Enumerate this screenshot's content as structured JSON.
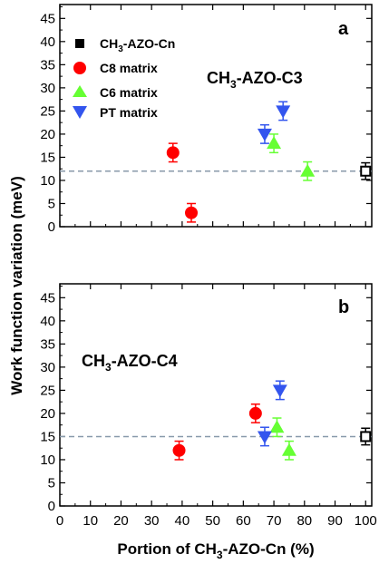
{
  "chart_data": [
    {
      "type": "scatter",
      "panel_letter": "a",
      "annotation_main": "CH",
      "annotation_sub": "3",
      "annotation_rest": "-AZO-C3",
      "xlim": [
        0,
        102
      ],
      "ylim": [
        0,
        48
      ],
      "yticks": [
        0,
        5,
        10,
        15,
        20,
        25,
        30,
        35,
        40,
        45
      ],
      "grid": false,
      "legend_position": "top-left",
      "reference_line_y": 12,
      "series": [
        {
          "name_main": "CH",
          "name_sub": "3",
          "name_rest": "-AZO-Cn",
          "color": "#000000",
          "marker": "square-open",
          "points": [
            {
              "x": 100,
              "y": 12,
              "err": 1.8
            }
          ]
        },
        {
          "name_main": "C8 matrix",
          "color": "#ff0000",
          "marker": "circle",
          "points": [
            {
              "x": 37,
              "y": 16,
              "err": 2
            },
            {
              "x": 43,
              "y": 3,
              "err": 2
            }
          ]
        },
        {
          "name_main": "C6 matrix",
          "color": "#66ff33",
          "marker": "triangle-up",
          "points": [
            {
              "x": 70,
              "y": 18,
              "err": 2
            },
            {
              "x": 81,
              "y": 12,
              "err": 2
            }
          ]
        },
        {
          "name_main": "PT matrix",
          "color": "#3355ee",
          "marker": "triangle-down",
          "points": [
            {
              "x": 67,
              "y": 20,
              "err": 2
            },
            {
              "x": 73,
              "y": 25,
              "err": 2
            }
          ]
        }
      ]
    },
    {
      "type": "scatter",
      "panel_letter": "b",
      "annotation_main": "CH",
      "annotation_sub": "3",
      "annotation_rest": "-AZO-C4",
      "xlim": [
        0,
        102
      ],
      "ylim": [
        0,
        48
      ],
      "yticks": [
        0,
        5,
        10,
        15,
        20,
        25,
        30,
        35,
        40,
        45
      ],
      "xticks": [
        0,
        10,
        20,
        30,
        40,
        50,
        60,
        70,
        80,
        90,
        100
      ],
      "grid": false,
      "reference_line_y": 15,
      "series": [
        {
          "color": "#000000",
          "marker": "square-open",
          "points": [
            {
              "x": 100,
              "y": 15,
              "err": 1.8
            }
          ]
        },
        {
          "color": "#ff0000",
          "marker": "circle",
          "points": [
            {
              "x": 39,
              "y": 12,
              "err": 2
            },
            {
              "x": 64,
              "y": 20,
              "err": 2
            }
          ]
        },
        {
          "color": "#66ff33",
          "marker": "triangle-up",
          "points": [
            {
              "x": 71,
              "y": 17,
              "err": 2
            },
            {
              "x": 75,
              "y": 12,
              "err": 2
            }
          ]
        },
        {
          "color": "#3355ee",
          "marker": "triangle-down",
          "points": [
            {
              "x": 67,
              "y": 15,
              "err": 2
            },
            {
              "x": 72,
              "y": 25,
              "err": 2
            }
          ]
        }
      ]
    }
  ],
  "ylabel": "Work function variation (meV)",
  "xlabel_main": "Portion of CH",
  "xlabel_sub": "3",
  "xlabel_rest": "-AZO-Cn (%)"
}
